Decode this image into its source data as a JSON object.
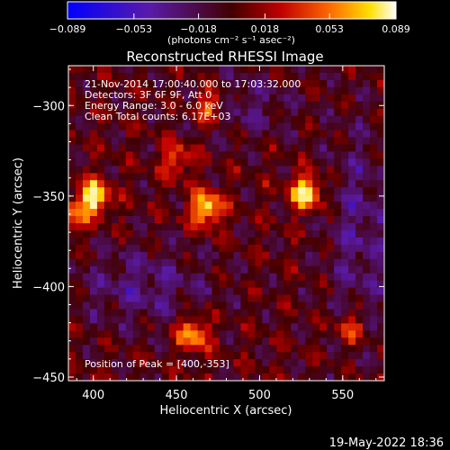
{
  "chart_data": {
    "type": "heatmap",
    "title": "Reconstructed RHESSI Image",
    "xlabel": "Heliocentric X (arcsec)",
    "ylabel": "Heliocentric Y (arcsec)",
    "xlim": [
      385,
      575
    ],
    "ylim": [
      -452,
      -278
    ],
    "xticks": [
      400,
      450,
      500,
      550
    ],
    "yticks": [
      -300,
      -350,
      -400,
      -450
    ],
    "colorbar": {
      "ticks": [
        -0.089,
        -0.053,
        -0.018,
        0.018,
        0.053,
        0.089
      ],
      "tick_labels": [
        "−0.089",
        "−0.053",
        "−0.018",
        "0.018",
        "0.053",
        "0.089"
      ],
      "range": [
        -0.089,
        0.089
      ],
      "units_label": "(photons cm⁻² s⁻¹ asec⁻²)"
    },
    "annotations": [
      "21-Nov-2014 17:00:40.000 to 17:03:32.000",
      "Detectors: 3F 6F 9F, Att 0",
      "Energy Range: 3.0 - 6.0 keV",
      "Clean     Total counts: 6.17E+03"
    ],
    "peak_text": "Position of Peak = [400,-353]",
    "sources": [
      {
        "x": 400,
        "y": -351,
        "peak": 0.089
      },
      {
        "x": 468,
        "y": -357,
        "peak": 0.082
      },
      {
        "x": 528,
        "y": -348,
        "peak": 0.085
      },
      {
        "x": 460,
        "y": -426,
        "peak": 0.07
      },
      {
        "x": 470,
        "y": -300,
        "peak": 0.06
      },
      {
        "x": 385,
        "y": -362,
        "peak": 0.05
      },
      {
        "x": 450,
        "y": -330,
        "peak": 0.045
      },
      {
        "x": 555,
        "y": -423,
        "peak": 0.045
      }
    ],
    "timestamp": "19-May-2022 18:36"
  }
}
